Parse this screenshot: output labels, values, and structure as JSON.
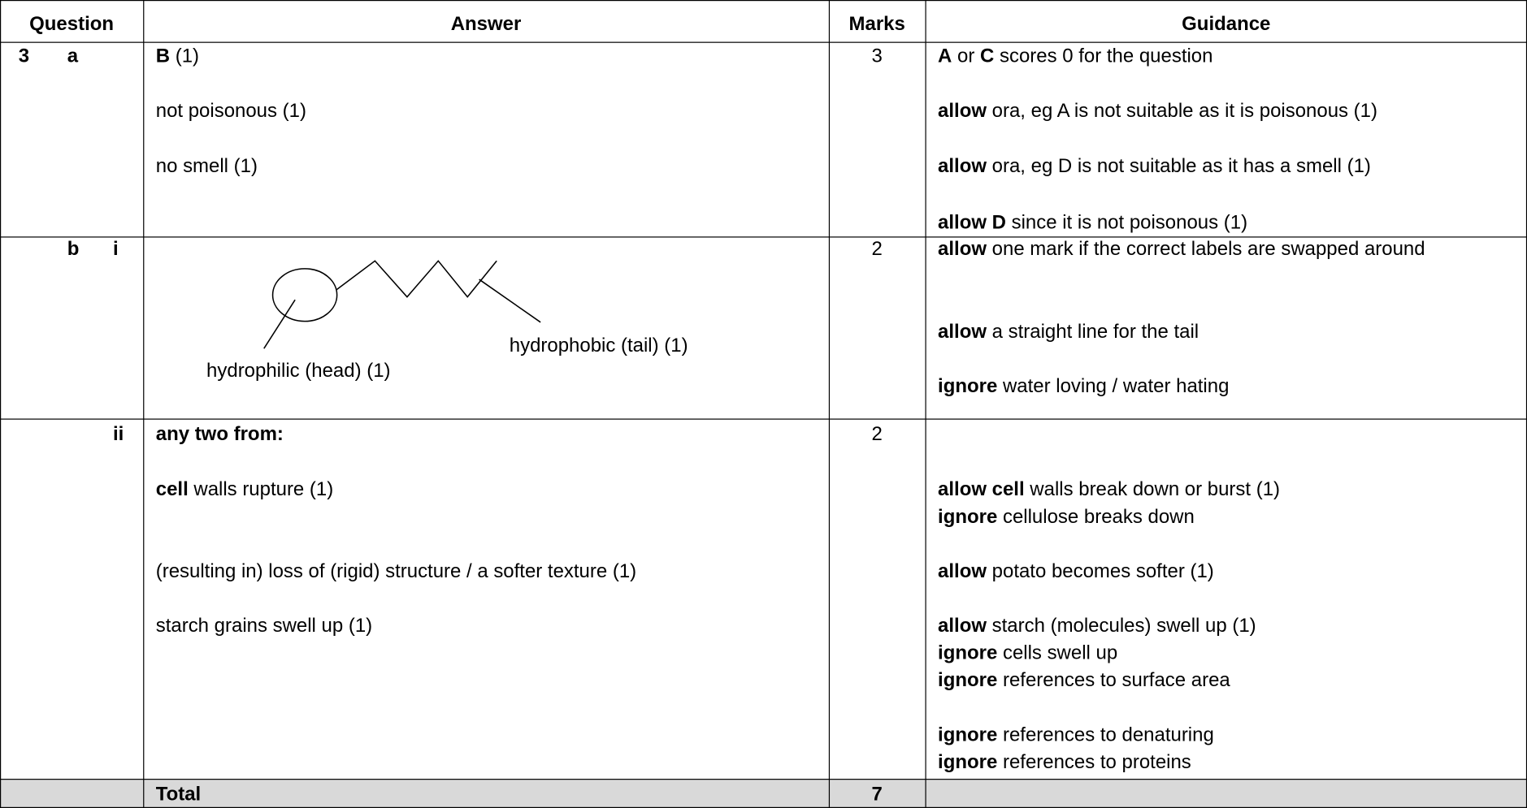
{
  "header": {
    "question": "Question",
    "answer": "Answer",
    "marks": "Marks",
    "guidance": "Guidance"
  },
  "rows": [
    {
      "question": {
        "number": "3",
        "part": "a"
      },
      "answer": [
        [
          {
            "text": "B",
            "bold": true
          },
          {
            "text": " (1)",
            "bold": false
          }
        ],
        [
          {
            "text": "not poisonous (1)",
            "bold": false
          }
        ],
        [
          {
            "text": "no smell (1)",
            "bold": false
          }
        ]
      ],
      "marks": 3,
      "guidance": [
        [
          {
            "text": "A",
            "bold": true
          },
          {
            "text": " or ",
            "bold": false
          },
          {
            "text": "C",
            "bold": true
          },
          {
            "text": " scores 0 for the question",
            "bold": false
          }
        ],
        [
          {
            "text": "allow",
            "bold": true
          },
          {
            "text": " ora, eg A is not suitable as it is poisonous (1)",
            "bold": false
          }
        ],
        [
          {
            "text": "allow",
            "bold": true
          },
          {
            "text": " ora, eg D is not suitable as it has a smell (1)",
            "bold": false
          }
        ],
        [
          {
            "text": "allow D",
            "bold": true
          },
          {
            "text": " since it is not poisonous (1)",
            "bold": false
          }
        ]
      ]
    },
    {
      "question": {
        "part": "b",
        "subpart": "i"
      },
      "answer": {
        "head_label": "hydrophilic (head) (1)",
        "tail_label": "hydrophobic (tail) (1)"
      },
      "marks": 2,
      "guidance": [
        [
          {
            "text": "allow",
            "bold": true
          },
          {
            "text": " one mark if the correct labels are swapped around",
            "bold": false
          }
        ],
        [
          {
            "text": "allow",
            "bold": true
          },
          {
            "text": " a straight line for the tail",
            "bold": false
          }
        ],
        [
          {
            "text": "ignore",
            "bold": true
          },
          {
            "text": " water loving / water hating",
            "bold": false
          }
        ]
      ]
    },
    {
      "question": {
        "subpart": "ii"
      },
      "answer": [
        [
          {
            "text": "any two from:",
            "bold": true
          }
        ],
        [
          {
            "text": "cell",
            "bold": true
          },
          {
            "text": " walls rupture (1)",
            "bold": false
          }
        ],
        [
          {
            "text": "(resulting in) loss of (rigid) structure / a softer texture (1)",
            "bold": false
          }
        ],
        [
          {
            "text": "starch grains swell up (1)",
            "bold": false
          }
        ]
      ],
      "marks": 2,
      "guidance": [
        [
          {
            "text": "allow cell",
            "bold": true
          },
          {
            "text": " walls break down or burst (1)",
            "bold": false
          }
        ],
        [
          {
            "text": "ignore",
            "bold": true
          },
          {
            "text": " cellulose breaks down",
            "bold": false
          }
        ],
        [
          {
            "text": "allow",
            "bold": true
          },
          {
            "text": " potato becomes softer (1)",
            "bold": false
          }
        ],
        [
          {
            "text": "allow",
            "bold": true
          },
          {
            "text": " starch (molecules) swell up (1)",
            "bold": false
          }
        ],
        [
          {
            "text": "ignore",
            "bold": true
          },
          {
            "text": " cells swell up",
            "bold": false
          }
        ],
        [
          {
            "text": "ignore",
            "bold": true
          },
          {
            "text": " references to surface area",
            "bold": false
          }
        ],
        [
          {
            "text": "ignore",
            "bold": true
          },
          {
            "text": " references to denaturing",
            "bold": false
          }
        ],
        [
          {
            "text": "ignore",
            "bold": true
          },
          {
            "text": " references to proteins",
            "bold": false
          }
        ]
      ]
    }
  ],
  "total": {
    "label": "Total",
    "marks": 7
  }
}
